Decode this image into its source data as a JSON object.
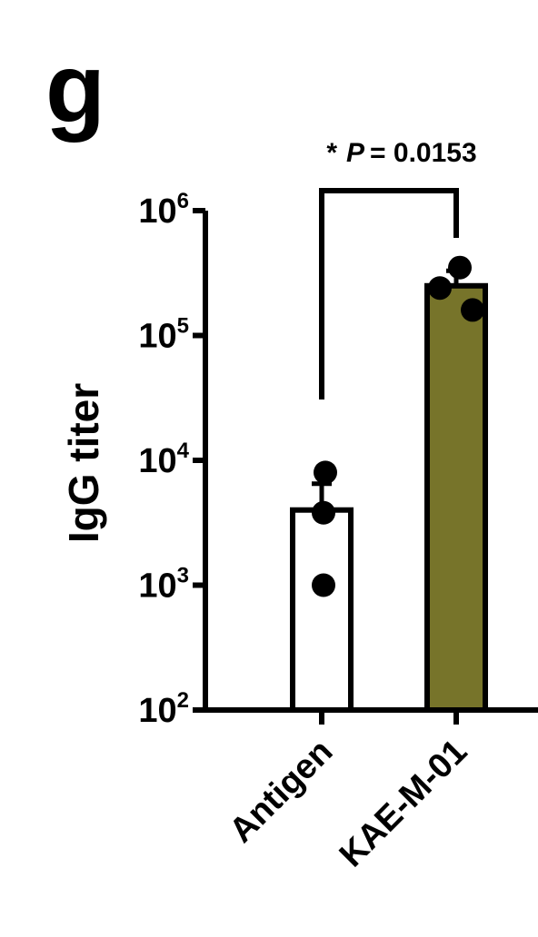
{
  "panel_label": "g",
  "chart_data": {
    "type": "bar",
    "scale": "log",
    "ylabel": "IgG titer",
    "ylim": [
      100,
      1000000
    ],
    "yticks": [
      {
        "value": 100,
        "base": "10",
        "exp": "2"
      },
      {
        "value": 1000,
        "base": "10",
        "exp": "3"
      },
      {
        "value": 10000,
        "base": "10",
        "exp": "4"
      },
      {
        "value": 100000,
        "base": "10",
        "exp": "5"
      },
      {
        "value": 1000000,
        "base": "10",
        "exp": "6"
      }
    ],
    "categories": [
      "Antigen",
      "KAE-M-01"
    ],
    "values": [
      4000,
      250000
    ],
    "error_upper": [
      6500,
      330000
    ],
    "points": [
      [
        8000,
        3800,
        1000
      ],
      [
        350000,
        240000,
        160000
      ]
    ],
    "colors": {
      "Antigen": "#ffffff",
      "KAE-M-01": "#77742a",
      "outline": "#000000",
      "points": "#000000"
    },
    "significance": {
      "star": "*",
      "p_label": "P",
      "p_value": "= 0.0153"
    },
    "grid": false
  }
}
